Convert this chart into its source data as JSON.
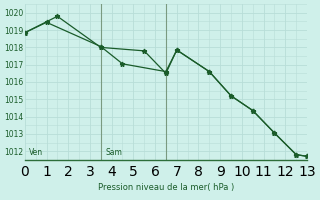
{
  "title": "Pression niveau de la mer( hPa )",
  "bg_color": "#cff0ea",
  "grid_major_color": "#b8ddd8",
  "grid_minor_color": "#d0eae6",
  "line_color": "#1a5c2a",
  "axis_color": "#2d6e3a",
  "vline_color": "#7a9a80",
  "ylim": [
    1011.5,
    1020.5
  ],
  "yticks": [
    1012,
    1013,
    1014,
    1015,
    1016,
    1017,
    1018,
    1019,
    1020
  ],
  "xlim": [
    0,
    13
  ],
  "ven_label": "Ven",
  "sam_label": "Sam",
  "vline1_x": 3.5,
  "vline2_x": 6.5,
  "series1": {
    "x": [
      0.0,
      1.0,
      3.5,
      4.5,
      6.5,
      7.0,
      8.5,
      9.5,
      10.5,
      11.5,
      12.5,
      13.0
    ],
    "y": [
      1018.85,
      1019.45,
      1018.05,
      1017.05,
      1016.6,
      1017.85,
      1016.6,
      1015.2,
      1014.35,
      1013.05,
      1011.8,
      1011.7
    ]
  },
  "series2": {
    "x": [
      0.0,
      1.5,
      3.5,
      5.5,
      6.5,
      7.0,
      8.5,
      9.5,
      10.5,
      11.5,
      12.5,
      13.0
    ],
    "y": [
      1018.85,
      1019.8,
      1018.0,
      1017.8,
      1016.5,
      1017.85,
      1016.6,
      1015.2,
      1014.35,
      1013.05,
      1011.8,
      1011.7
    ]
  }
}
